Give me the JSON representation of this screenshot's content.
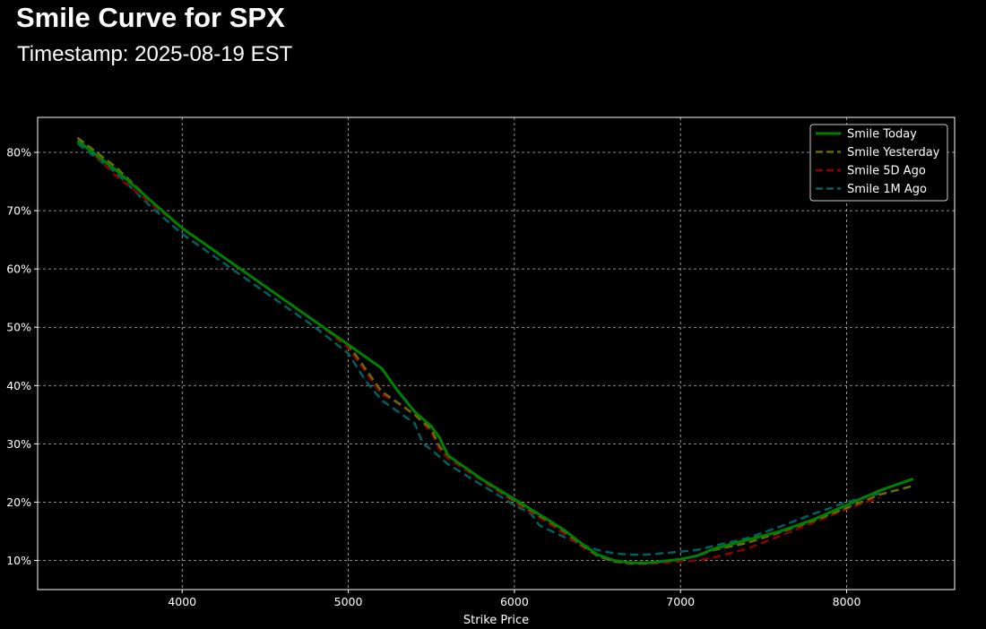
{
  "header": {
    "title": "Smile Curve for SPX",
    "subtitle": "Timestamp: 2025-08-19 EST"
  },
  "chart_data": {
    "type": "line",
    "title": "Smile Curve for SPX",
    "subtitle": "Timestamp: 2025-08-19 EST",
    "xlabel": "Strike Price",
    "ylabel": "",
    "xlim": [
      3130,
      8650
    ],
    "ylim": [
      5,
      86
    ],
    "x_ticks": [
      4000,
      5000,
      6000,
      7000,
      8000
    ],
    "y_ticks": [
      10,
      20,
      30,
      40,
      50,
      60,
      70,
      80
    ],
    "y_tick_format": "percent",
    "grid": true,
    "legend_position": "top-right",
    "series": [
      {
        "name": "Smile Today",
        "color": "#008000",
        "style": "solid",
        "points": [
          [
            3370,
            82
          ],
          [
            3600,
            77
          ],
          [
            3800,
            72
          ],
          [
            4000,
            67
          ],
          [
            4200,
            63
          ],
          [
            4400,
            59
          ],
          [
            4600,
            55
          ],
          [
            4800,
            51
          ],
          [
            5000,
            47
          ],
          [
            5100,
            45
          ],
          [
            5200,
            43
          ],
          [
            5300,
            39
          ],
          [
            5400,
            35.5
          ],
          [
            5500,
            33
          ],
          [
            5550,
            31
          ],
          [
            5600,
            28
          ],
          [
            5800,
            24
          ],
          [
            6000,
            20.5
          ],
          [
            6200,
            17
          ],
          [
            6300,
            15.2
          ],
          [
            6400,
            13
          ],
          [
            6500,
            11
          ],
          [
            6600,
            10
          ],
          [
            6700,
            9.6
          ],
          [
            6800,
            9.6
          ],
          [
            7000,
            10.2
          ],
          [
            7100,
            10.8
          ],
          [
            7200,
            12
          ],
          [
            7400,
            13.5
          ],
          [
            7600,
            15
          ],
          [
            7800,
            17
          ],
          [
            8000,
            19.5
          ],
          [
            8200,
            22
          ],
          [
            8400,
            24
          ]
        ]
      },
      {
        "name": "Smile Yesterday",
        "color": "#6b6b00",
        "style": "dashed",
        "points": [
          [
            3370,
            82.5
          ],
          [
            3600,
            77.5
          ],
          [
            3800,
            72
          ],
          [
            4000,
            67
          ],
          [
            4200,
            63
          ],
          [
            4400,
            59
          ],
          [
            4600,
            55
          ],
          [
            4800,
            51
          ],
          [
            5000,
            47
          ],
          [
            5100,
            43
          ],
          [
            5200,
            39
          ],
          [
            5300,
            37
          ],
          [
            5400,
            35
          ],
          [
            5500,
            32.5
          ],
          [
            5550,
            29.5
          ],
          [
            5600,
            28
          ],
          [
            5800,
            24
          ],
          [
            6000,
            20.3
          ],
          [
            6200,
            16.8
          ],
          [
            6300,
            15
          ],
          [
            6400,
            12.8
          ],
          [
            6500,
            10.8
          ],
          [
            6600,
            9.8
          ],
          [
            6700,
            9.5
          ],
          [
            6800,
            9.5
          ],
          [
            7000,
            10.2
          ],
          [
            7100,
            10.8
          ],
          [
            7200,
            11.8
          ],
          [
            7400,
            13
          ],
          [
            7600,
            14.8
          ],
          [
            7800,
            16.8
          ],
          [
            8000,
            19
          ],
          [
            8200,
            21.3
          ],
          [
            8400,
            22.8
          ]
        ]
      },
      {
        "name": "Smile 5D Ago",
        "color": "#8b0000",
        "style": "dashed",
        "points": [
          [
            3370,
            82.5
          ],
          [
            3600,
            76
          ],
          [
            3800,
            71.5
          ],
          [
            4000,
            67
          ],
          [
            4200,
            63
          ],
          [
            4400,
            59
          ],
          [
            4600,
            55
          ],
          [
            4800,
            51
          ],
          [
            5000,
            46.5
          ],
          [
            5100,
            42.5
          ],
          [
            5200,
            38.5
          ],
          [
            5300,
            37
          ],
          [
            5400,
            35
          ],
          [
            5500,
            32
          ],
          [
            5550,
            29
          ],
          [
            5600,
            27.5
          ],
          [
            5800,
            23.8
          ],
          [
            6000,
            20
          ],
          [
            6200,
            16.5
          ],
          [
            6300,
            14.5
          ],
          [
            6400,
            12.5
          ],
          [
            6500,
            10.8
          ],
          [
            6600,
            9.8
          ],
          [
            6700,
            9.4
          ],
          [
            6800,
            9.4
          ],
          [
            7000,
            9.8
          ],
          [
            7100,
            10
          ],
          [
            7200,
            10.5
          ],
          [
            7400,
            12
          ],
          [
            7600,
            14.2
          ],
          [
            7800,
            16.5
          ],
          [
            8000,
            18.8
          ],
          [
            8200,
            20.8
          ]
        ]
      },
      {
        "name": "Smile 1M Ago",
        "color": "#005f5f",
        "style": "dashed",
        "points": [
          [
            3370,
            81.5
          ],
          [
            3600,
            76.5
          ],
          [
            3800,
            71
          ],
          [
            4000,
            66
          ],
          [
            4200,
            62
          ],
          [
            4400,
            58
          ],
          [
            4600,
            54
          ],
          [
            4800,
            50
          ],
          [
            5000,
            45.5
          ],
          [
            5100,
            41
          ],
          [
            5200,
            37.5
          ],
          [
            5300,
            35.5
          ],
          [
            5400,
            33.5
          ],
          [
            5450,
            30
          ],
          [
            5500,
            29
          ],
          [
            5600,
            26.5
          ],
          [
            5800,
            23
          ],
          [
            6000,
            19.5
          ],
          [
            6100,
            18
          ],
          [
            6150,
            16
          ],
          [
            6300,
            14
          ],
          [
            6400,
            12.8
          ],
          [
            6500,
            11.8
          ],
          [
            6600,
            11.2
          ],
          [
            6700,
            11
          ],
          [
            6800,
            11
          ],
          [
            7000,
            11.5
          ],
          [
            7100,
            11.8
          ],
          [
            7200,
            12.5
          ],
          [
            7400,
            13.8
          ],
          [
            7600,
            15.8
          ],
          [
            7800,
            18
          ],
          [
            8000,
            20
          ],
          [
            8200,
            21.5
          ]
        ]
      }
    ]
  }
}
